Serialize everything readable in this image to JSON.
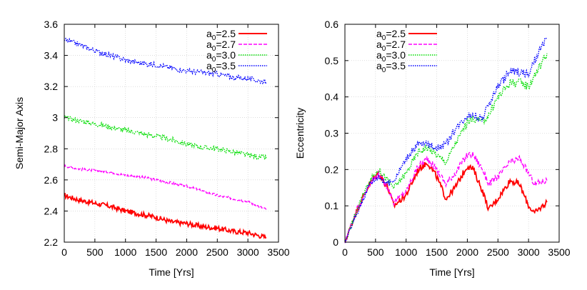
{
  "chart_data": [
    {
      "type": "line",
      "xlabel": "Time [Yrs]",
      "ylabel": "Semi-Major Axis",
      "xlim": [
        0,
        3500
      ],
      "ylim": [
        2.2,
        3.6
      ],
      "xticks": [
        "0",
        "500",
        "1000",
        "1500",
        "2000",
        "2500",
        "3000",
        "3500"
      ],
      "yticks": [
        "2.2",
        "2.4",
        "2.6",
        "2.8",
        "3",
        "3.2",
        "3.4",
        "3.6"
      ],
      "grid": true,
      "legend_position": "top-right",
      "series": [
        {
          "name": "a",
          "sub": "0",
          "suffix": "=2.5",
          "color": "#ff0000",
          "style": "solid",
          "x": [
            0,
            250,
            500,
            750,
            1000,
            1250,
            1500,
            1750,
            2000,
            2250,
            2500,
            2750,
            3000,
            3300
          ],
          "y": [
            2.5,
            2.47,
            2.45,
            2.43,
            2.4,
            2.38,
            2.36,
            2.33,
            2.32,
            2.3,
            2.29,
            2.27,
            2.26,
            2.23
          ]
        },
        {
          "name": "a",
          "sub": "0",
          "suffix": "=2.7",
          "color": "#ff00ff",
          "style": "dashed",
          "x": [
            0,
            250,
            500,
            750,
            1000,
            1250,
            1500,
            1750,
            2000,
            2250,
            2500,
            2750,
            3000,
            3300
          ],
          "y": [
            2.69,
            2.67,
            2.66,
            2.65,
            2.63,
            2.62,
            2.6,
            2.58,
            2.56,
            2.53,
            2.5,
            2.48,
            2.46,
            2.41
          ]
        },
        {
          "name": "a",
          "sub": "0",
          "suffix": "=3.0",
          "color": "#00dd00",
          "style": "dotted",
          "x": [
            0,
            250,
            500,
            750,
            1000,
            1250,
            1500,
            1750,
            2000,
            2250,
            2500,
            2750,
            3000,
            3300
          ],
          "y": [
            3.0,
            2.98,
            2.96,
            2.94,
            2.92,
            2.9,
            2.88,
            2.86,
            2.83,
            2.81,
            2.8,
            2.78,
            2.76,
            2.74
          ]
        },
        {
          "name": "a",
          "sub": "0",
          "suffix": "=3.5",
          "color": "#0000ff",
          "style": "dotted",
          "x": [
            0,
            250,
            500,
            750,
            1000,
            1250,
            1500,
            1750,
            2000,
            2250,
            2500,
            2750,
            3000,
            3300
          ],
          "y": [
            3.5,
            3.47,
            3.43,
            3.4,
            3.37,
            3.35,
            3.34,
            3.32,
            3.3,
            3.29,
            3.28,
            3.26,
            3.25,
            3.23
          ]
        }
      ]
    },
    {
      "type": "line",
      "xlabel": "Time [Yrs]",
      "ylabel": "Eccentricity",
      "xlim": [
        0,
        3500
      ],
      "ylim": [
        0,
        0.6
      ],
      "xticks": [
        "0",
        "500",
        "1000",
        "1500",
        "2000",
        "2500",
        "3000",
        "3500"
      ],
      "yticks": [
        "0",
        "0.1",
        "0.2",
        "0.3",
        "0.4",
        "0.5",
        "0.6"
      ],
      "grid": true,
      "legend_position": "top-left",
      "series": [
        {
          "name": "a",
          "sub": "0",
          "suffix": "=2.5",
          "color": "#ff0000",
          "style": "solid",
          "x": [
            0,
            200,
            400,
            550,
            700,
            800,
            1000,
            1200,
            1350,
            1500,
            1650,
            1800,
            2000,
            2100,
            2250,
            2350,
            2500,
            2700,
            2850,
            3000,
            3100,
            3300
          ],
          "y": [
            0.0,
            0.09,
            0.16,
            0.19,
            0.15,
            0.1,
            0.13,
            0.2,
            0.22,
            0.18,
            0.12,
            0.15,
            0.21,
            0.2,
            0.14,
            0.09,
            0.12,
            0.17,
            0.16,
            0.1,
            0.08,
            0.11
          ]
        },
        {
          "name": "a",
          "sub": "0",
          "suffix": "=2.7",
          "color": "#ff00ff",
          "style": "dashed",
          "x": [
            0,
            200,
            400,
            550,
            700,
            800,
            1000,
            1200,
            1350,
            1500,
            1650,
            1800,
            2000,
            2100,
            2250,
            2350,
            2500,
            2700,
            2850,
            3000,
            3100,
            3300
          ],
          "y": [
            0.0,
            0.09,
            0.16,
            0.19,
            0.15,
            0.11,
            0.14,
            0.21,
            0.23,
            0.2,
            0.16,
            0.19,
            0.24,
            0.24,
            0.2,
            0.16,
            0.18,
            0.22,
            0.23,
            0.19,
            0.16,
            0.17
          ]
        },
        {
          "name": "a",
          "sub": "0",
          "suffix": "=3.0",
          "color": "#00dd00",
          "style": "dotted",
          "x": [
            0,
            200,
            400,
            550,
            700,
            800,
            1000,
            1200,
            1350,
            1500,
            1650,
            1800,
            2000,
            2100,
            2250,
            2350,
            2500,
            2700,
            2850,
            3000,
            3100,
            3300
          ],
          "y": [
            0.0,
            0.09,
            0.17,
            0.2,
            0.17,
            0.15,
            0.19,
            0.25,
            0.26,
            0.24,
            0.22,
            0.27,
            0.33,
            0.34,
            0.33,
            0.35,
            0.4,
            0.44,
            0.44,
            0.43,
            0.46,
            0.52
          ]
        },
        {
          "name": "a",
          "sub": "0",
          "suffix": "=3.5",
          "color": "#0000ff",
          "style": "dotted",
          "x": [
            0,
            200,
            400,
            550,
            700,
            800,
            1000,
            1200,
            1350,
            1500,
            1650,
            1800,
            2000,
            2100,
            2250,
            2350,
            2500,
            2700,
            2850,
            3000,
            3100,
            3300
          ],
          "y": [
            0.0,
            0.08,
            0.16,
            0.18,
            0.16,
            0.17,
            0.23,
            0.27,
            0.27,
            0.26,
            0.27,
            0.31,
            0.35,
            0.35,
            0.34,
            0.38,
            0.43,
            0.47,
            0.47,
            0.46,
            0.5,
            0.56
          ]
        }
      ]
    }
  ]
}
